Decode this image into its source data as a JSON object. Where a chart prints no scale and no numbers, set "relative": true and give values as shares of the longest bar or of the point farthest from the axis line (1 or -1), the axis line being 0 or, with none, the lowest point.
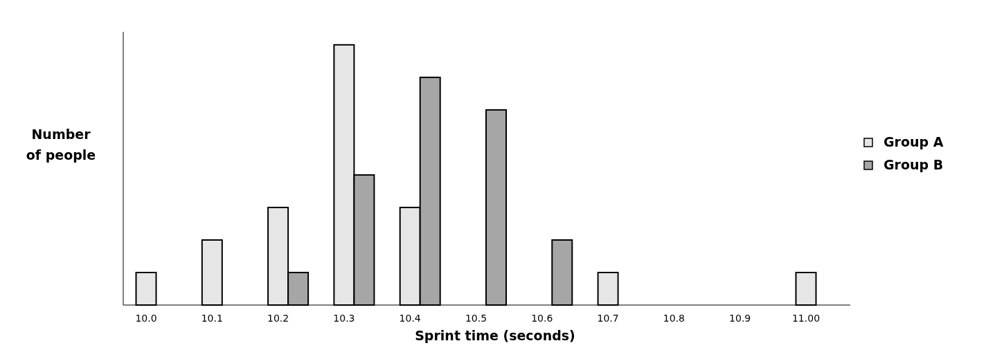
{
  "chart_data": {
    "type": "bar",
    "relative": true,
    "xlabel": "Sprint time (seconds)",
    "ylabel": "Number\nof people",
    "legend": "right",
    "categories": [
      "10.0",
      "10.1",
      "10.2",
      "10.3",
      "10.4",
      "10.5",
      "10.6",
      "10.7",
      "10.8",
      "10.9",
      "11.00"
    ],
    "series": [
      {
        "name": "Group A",
        "color": "#e6e6e6",
        "values": [
          0.125,
          0.25,
          0.375,
          1,
          0.375,
          null,
          null,
          0.125,
          null,
          null,
          0.125
        ]
      },
      {
        "name": "Group B",
        "color": "#a6a6a6",
        "values": [
          null,
          null,
          0.125,
          0.5,
          0.875,
          0.75,
          0.25,
          null,
          null,
          null,
          null
        ]
      }
    ]
  }
}
